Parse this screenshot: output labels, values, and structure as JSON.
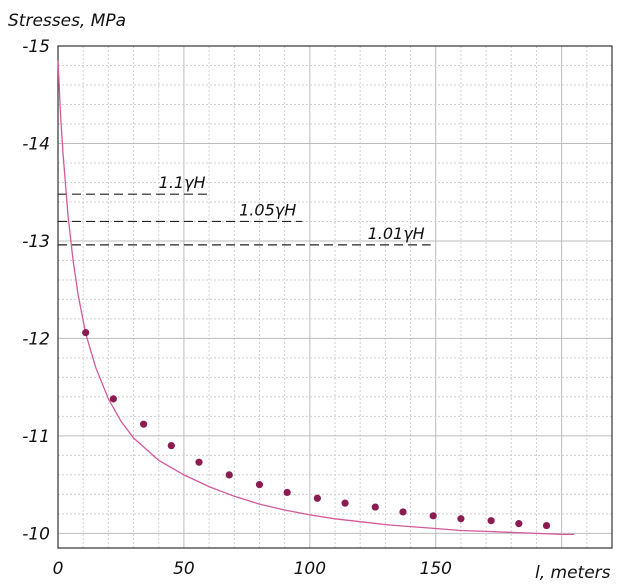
{
  "chart_data": {
    "type": "line",
    "title": "",
    "ylabel": "Stresses, MPa",
    "xlabel": "l, meters",
    "xlim": [
      0,
      220
    ],
    "ylim": [
      -15,
      -9.85
    ],
    "x_ticks": [
      0,
      50,
      100,
      150
    ],
    "x_tick_labels": [
      "0",
      "50",
      "100",
      "150"
    ],
    "y_ticks": [
      -15,
      -14,
      -13,
      -12,
      -11,
      -10
    ],
    "y_tick_labels": [
      "-15",
      "-14",
      "-13",
      "-12",
      "-11",
      "-10"
    ],
    "grid": true,
    "curve": {
      "x": [
        0,
        1,
        2,
        4,
        6,
        8,
        11,
        15,
        20,
        25,
        30,
        40,
        50,
        60,
        70,
        80,
        90,
        100,
        110,
        120,
        130,
        140,
        150,
        160,
        170,
        180,
        190,
        200,
        205
      ],
      "y": [
        -14.85,
        -14.3,
        -13.9,
        -13.25,
        -12.8,
        -12.45,
        -12.05,
        -11.7,
        -11.38,
        -11.15,
        -10.98,
        -10.75,
        -10.6,
        -10.48,
        -10.38,
        -10.3,
        -10.24,
        -10.19,
        -10.15,
        -10.12,
        -10.09,
        -10.07,
        -10.05,
        -10.03,
        -10.02,
        -10.01,
        -10.0,
        -9.99,
        -9.99
      ]
    },
    "points": {
      "x": [
        11,
        22,
        34,
        45,
        56,
        68,
        80,
        91,
        103,
        114,
        126,
        137,
        149,
        160,
        172,
        183,
        194
      ],
      "y": [
        -12.06,
        -11.38,
        -11.12,
        -10.9,
        -10.73,
        -10.6,
        -10.5,
        -10.42,
        -10.36,
        -10.31,
        -10.27,
        -10.22,
        -10.18,
        -10.15,
        -10.13,
        -10.1,
        -10.08
      ]
    },
    "levels": [
      {
        "label": "1.1γH",
        "y": -13.48,
        "x_end": 61
      },
      {
        "label": "1.05γH",
        "y": -13.2,
        "x_end": 97
      },
      {
        "label": "1.01γH",
        "y": -12.96,
        "x_end": 148
      }
    ],
    "colors": {
      "curve": "#d4599a",
      "points": "#8b1c52"
    }
  }
}
